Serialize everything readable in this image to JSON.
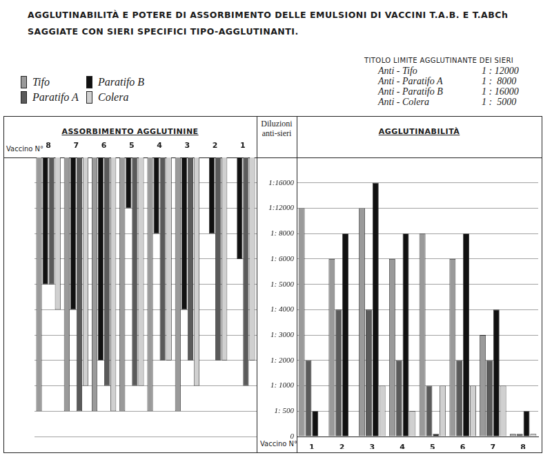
{
  "title": "AGGLUTINABILITÀ E POTERE DI ASSORBIMENTO DELLE EMULSIONI DI VACCINI T.A.B. E T.ABCh SAGGIATE CON SIERI SPECIFICI TIPO-AGGLUTINANTI.",
  "annotations": {
    "title": "TITOLO LIMITE AGGLUTINANTE DEI SIERI",
    "rows": [
      {
        "label": "Anti - Tifo",
        "value": "1 : 12000"
      },
      {
        "label": "Anti - Paratifo A",
        "value": "1 :  8000"
      },
      {
        "label": "Anti - Paratifo B",
        "value": "1 : 16000"
      },
      {
        "label": "Anti - Colera",
        "value": "1 :  5000"
      }
    ]
  },
  "chart_data": [
    {
      "type": "bar",
      "title": "ASSORBIMENTO AGGLUTININE",
      "x_label": "Vaccino N°",
      "categories": [
        "8",
        "7",
        "6",
        "5",
        "4",
        "3",
        "2",
        "1"
      ],
      "series": [
        {
          "name": "Tifo",
          "color": "#9a9a9a",
          "values": [
            500,
            500,
            500,
            500,
            500,
            500,
            null,
            null
          ]
        },
        {
          "name": "Paratifo B",
          "color": "#111111",
          "values": [
            5000,
            4000,
            2000,
            12000,
            8000,
            4000,
            8000,
            6000
          ]
        },
        {
          "name": "Paratifo A",
          "color": "#5a5a5a",
          "values": [
            5000,
            500,
            1000,
            1000,
            2000,
            2000,
            2000,
            1000
          ]
        },
        {
          "name": "Colera",
          "color": "#d0d0d0",
          "values": [
            4000,
            1000,
            500,
            1000,
            2000,
            1000,
            2000,
            2000
          ]
        }
      ],
      "ylim": [
        0,
        20000
      ],
      "yticks": [
        0,
        {
          "value": 500,
          "label": "1: 500"
        },
        {
          "value": 1000,
          "label": "1: 1000"
        },
        {
          "value": 2000,
          "label": "1: 2000"
        },
        {
          "value": 3000,
          "label": "1: 3000"
        },
        {
          "value": 4000,
          "label": "1: 4000"
        },
        {
          "value": 5000,
          "label": "1: 5000"
        },
        {
          "value": 6000,
          "label": "1: 6000"
        },
        {
          "value": 8000,
          "label": "1: 8000"
        },
        {
          "value": 12000,
          "label": "1:12000"
        },
        {
          "value": 16000,
          "label": "1:16000"
        }
      ],
      "grid": true,
      "tick_labels": "x"
    },
    {
      "type": "bar",
      "title": "AGGLUTINABILITÀ",
      "x_label": "Vaccino N°",
      "y_label": "Diluzioni anti-sieri",
      "categories": [
        "1",
        "2",
        "3",
        "4",
        "5",
        "6",
        "7",
        "8"
      ],
      "series": [
        {
          "name": "Tifo",
          "color": "#9a9a9a",
          "values": [
            12000,
            6000,
            12000,
            6000,
            8000,
            6000,
            3000,
            50
          ]
        },
        {
          "name": "Paratifo A",
          "color": "#5a5a5a",
          "values": [
            2000,
            4000,
            4000,
            2000,
            1000,
            2000,
            2000,
            50
          ]
        },
        {
          "name": "Paratifo B",
          "color": "#111111",
          "values": [
            500,
            8000,
            16000,
            8000,
            50,
            8000,
            4000,
            500
          ]
        },
        {
          "name": "Colera",
          "color": "#d0d0d0",
          "values": [
            0,
            0,
            1000,
            500,
            1000,
            1000,
            1000,
            50
          ]
        }
      ],
      "ylim": [
        0,
        20000
      ],
      "yticks": [
        0,
        {
          "value": 500,
          "label": "1: 500"
        },
        {
          "value": 1000,
          "label": "1: 1000"
        },
        {
          "value": 2000,
          "label": "1: 2000"
        },
        {
          "value": 3000,
          "label": "1: 3000"
        },
        {
          "value": 4000,
          "label": "1: 4000"
        },
        {
          "value": 5000,
          "label": "1: 5000"
        },
        {
          "value": 6000,
          "label": "1: 6000"
        },
        {
          "value": 8000,
          "label": "1: 8000"
        },
        {
          "value": 12000,
          "label": "1:12000"
        },
        {
          "value": 16000,
          "label": "1:16000"
        }
      ],
      "grid": true,
      "legend": "top-left"
    }
  ]
}
